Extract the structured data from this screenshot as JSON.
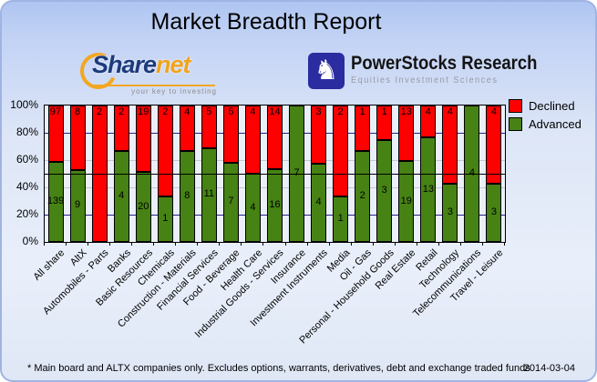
{
  "header": {
    "title": "Market Breadth Report"
  },
  "logos": {
    "sharenet": {
      "name_primary": "Share",
      "name_secondary": "net",
      "tagline": "your key to investing",
      "primary_color": "#1C3B7C",
      "secondary_color": "#F0A41E"
    },
    "powerstocks": {
      "name": "PowerStocks Research",
      "tagline": "Equities Investment Sciences",
      "icon": "knight-chess-icon",
      "icon_glyph": "♞",
      "badge_color": "#2B2CA0"
    }
  },
  "chart_data": {
    "type": "bar",
    "stacked": true,
    "stack_unit": "percent",
    "title": "Market Breadth Report",
    "categories": [
      "All share",
      "AltX",
      "Automobiles - Parts",
      "Banks",
      "Basic Resources",
      "Chemicals",
      "Construction - Materials",
      "Financial Services",
      "Food - Beverage",
      "Health Care",
      "Industrial Goods - Services",
      "Insurance",
      "Investment Instruments",
      "Media",
      "Oil - Gas",
      "Personal - Household Goods",
      "Real Estate",
      "Retail",
      "Technology",
      "Telecommunications",
      "Travel - Leisure"
    ],
    "series": [
      {
        "name": "Declined",
        "color": "#FF0000",
        "values": [
          97,
          8,
          2,
          2,
          19,
          2,
          4,
          5,
          5,
          4,
          14,
          0,
          3,
          2,
          1,
          1,
          13,
          4,
          4,
          0,
          4
        ]
      },
      {
        "name": "Advanced",
        "color": "#468214",
        "values": [
          139,
          9,
          0,
          4,
          20,
          1,
          8,
          11,
          7,
          4,
          16,
          7,
          4,
          1,
          2,
          3,
          19,
          13,
          3,
          4,
          3
        ]
      }
    ],
    "y_ticks": [
      "0%",
      "20%",
      "40%",
      "60%",
      "80%",
      "100%"
    ],
    "ylim": [
      0,
      100
    ],
    "legend_position": "top-right",
    "grid_on": true,
    "gridlines": [
      {
        "percent": 20,
        "color": "#23238F"
      },
      {
        "percent": 40,
        "color": "#C6C6D6"
      },
      {
        "percent": 60,
        "color": "#C6C6D6"
      },
      {
        "percent": 80,
        "color": "#23238F"
      }
    ],
    "reference_line": {
      "percent": 50,
      "color": "#000000"
    },
    "plot_background": "#EAEFF8"
  },
  "footer": {
    "note": "* Main board and ALTX companies only. Excludes options, warrants, derivatives, debt and exchange traded funds",
    "date": "2014-03-04"
  }
}
